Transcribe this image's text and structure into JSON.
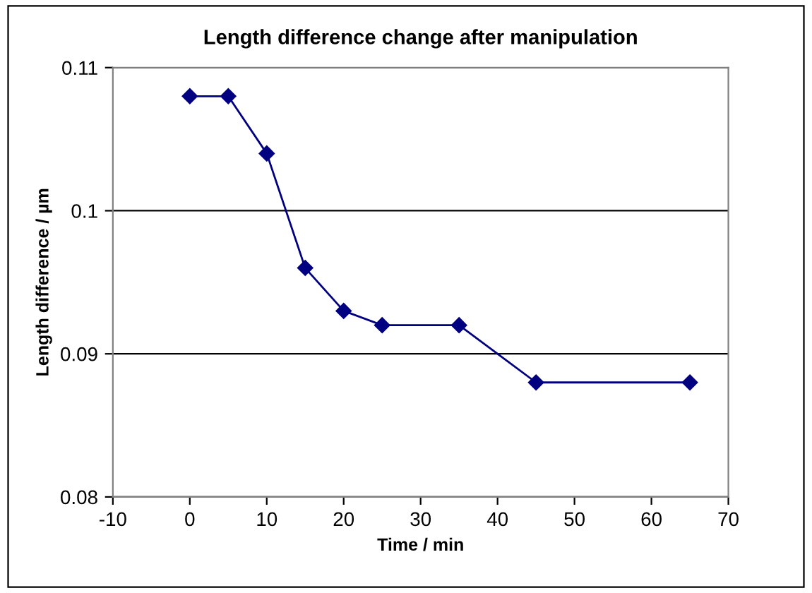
{
  "chart_data": {
    "type": "line",
    "title": "Length difference change after manipulation",
    "xlabel": "Time / min",
    "ylabel": "Length difference / µm",
    "x": [
      0,
      5,
      10,
      15,
      20,
      25,
      35,
      45,
      65
    ],
    "series": [
      {
        "color": "#000080",
        "values": [
          0.108,
          0.108,
          0.104,
          0.096,
          0.093,
          0.092,
          0.092,
          0.088,
          0.088
        ]
      }
    ],
    "xlim": [
      -10,
      70
    ],
    "xticks": [
      -10,
      0,
      10,
      20,
      30,
      40,
      50,
      60,
      70
    ],
    "ylim": [
      0.08,
      0.11
    ],
    "yticks": [
      0.08,
      0.09,
      0.1,
      0.11
    ],
    "grid": "y",
    "marker": "diamond",
    "line_style": "solid",
    "legend": false
  }
}
